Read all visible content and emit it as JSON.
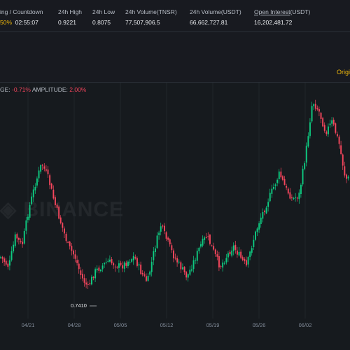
{
  "stats": {
    "funding": {
      "label": "ing / Countdown",
      "rate": "50%",
      "countdown": "02:55:07"
    },
    "high": {
      "label": "24h High",
      "value": "0.9221"
    },
    "low": {
      "label": "24h Low",
      "value": "0.8075"
    },
    "vol_base": {
      "label": "24h Volume(TNSR)",
      "value": "77,507,906.5"
    },
    "vol_quote": {
      "label": "24h Volume(USDT)",
      "value": "66,662,727.81"
    },
    "oi": {
      "label": "Open Interest",
      "unit": "(USDT)",
      "value": "16,202,481.72"
    }
  },
  "toolbar": {
    "orig_tab": "Origi"
  },
  "chart_info": {
    "change_label": "GE:",
    "change_value": "-0.71%",
    "amp_label": "AMPLITUDE:",
    "amp_value": "2.00%"
  },
  "watermark": "BINANCE",
  "low_marker": "0.7410",
  "colors": {
    "up": "#0ecb81",
    "down": "#f6465d",
    "accent": "#f0b90b",
    "bg": "#161a1e"
  },
  "chart_data": {
    "type": "candlestick",
    "x_ticks": [
      "04/21",
      "04/28",
      "05/05",
      "05/12",
      "05/19",
      "05/26",
      "06/02"
    ],
    "annotations": [
      {
        "text": "0.7410",
        "kind": "period-low"
      }
    ],
    "price_points": [
      {
        "date": "04/16",
        "close": 0.83
      },
      {
        "date": "04/18",
        "close": 0.8
      },
      {
        "date": "04/19",
        "close": 0.86
      },
      {
        "date": "04/20",
        "close": 0.84
      },
      {
        "date": "04/21",
        "close": 0.91
      },
      {
        "date": "04/22",
        "close": 0.96
      },
      {
        "date": "04/23",
        "close": 1.0
      },
      {
        "date": "04/24",
        "close": 0.97
      },
      {
        "date": "04/25",
        "close": 0.92
      },
      {
        "date": "04/26",
        "close": 0.88
      },
      {
        "date": "04/27",
        "close": 0.84
      },
      {
        "date": "04/28",
        "close": 0.82
      },
      {
        "date": "04/29",
        "close": 0.78
      },
      {
        "date": "04/30",
        "close": 0.76
      },
      {
        "date": "05/01",
        "close": 0.79
      },
      {
        "date": "05/03",
        "close": 0.81
      },
      {
        "date": "05/05",
        "close": 0.8
      },
      {
        "date": "05/07",
        "close": 0.82
      },
      {
        "date": "05/08",
        "close": 0.79
      },
      {
        "date": "05/09",
        "close": 0.77
      },
      {
        "date": "05/10",
        "close": 0.83
      },
      {
        "date": "05/11",
        "close": 0.88
      },
      {
        "date": "05/12",
        "close": 0.85
      },
      {
        "date": "05/13",
        "close": 0.82
      },
      {
        "date": "05/14",
        "close": 0.8
      },
      {
        "date": "05/15",
        "close": 0.78
      },
      {
        "date": "05/16",
        "close": 0.81
      },
      {
        "date": "05/17",
        "close": 0.84
      },
      {
        "date": "05/18",
        "close": 0.86
      },
      {
        "date": "05/19",
        "close": 0.83
      },
      {
        "date": "05/20",
        "close": 0.8
      },
      {
        "date": "05/21",
        "close": 0.82
      },
      {
        "date": "05/22",
        "close": 0.84
      },
      {
        "date": "05/23",
        "close": 0.82
      },
      {
        "date": "05/24",
        "close": 0.8
      },
      {
        "date": "05/25",
        "close": 0.85
      },
      {
        "date": "05/26",
        "close": 0.89
      },
      {
        "date": "05/27",
        "close": 0.92
      },
      {
        "date": "05/28",
        "close": 0.95
      },
      {
        "date": "05/29",
        "close": 0.98
      },
      {
        "date": "05/30",
        "close": 0.95
      },
      {
        "date": "05/31",
        "close": 0.93
      },
      {
        "date": "06/01",
        "close": 0.94
      },
      {
        "date": "06/02",
        "close": 1.02
      },
      {
        "date": "06/03",
        "close": 1.12
      },
      {
        "date": "06/04",
        "close": 1.1
      },
      {
        "date": "06/05",
        "close": 1.06
      },
      {
        "date": "06/06",
        "close": 1.08
      },
      {
        "date": "06/07",
        "close": 1.04
      },
      {
        "date": "06/08",
        "close": 0.97
      }
    ]
  }
}
